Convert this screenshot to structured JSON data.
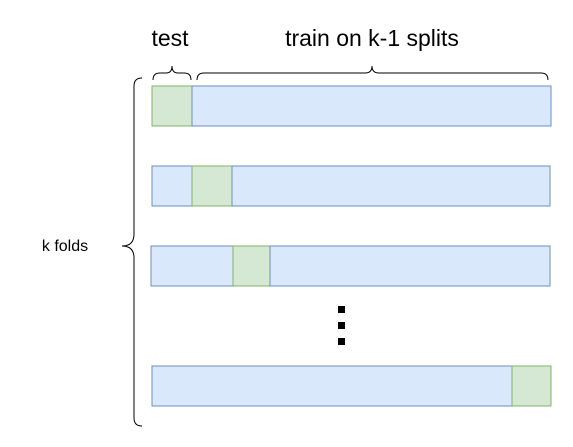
{
  "labels": {
    "test": "test",
    "train": "train on k-1 splits",
    "folds": "k folds"
  },
  "colors": {
    "train_fill": "#dae8fc",
    "train_stroke": "#6c8ebf",
    "test_fill": "#d5e8d4",
    "test_stroke": "#82b366",
    "text": "#000000"
  },
  "folds": [
    {
      "test_index": 0
    },
    {
      "test_index": 1
    },
    {
      "test_index": 2
    },
    {
      "ellipsis": true
    },
    {
      "test_index": "last"
    }
  ]
}
